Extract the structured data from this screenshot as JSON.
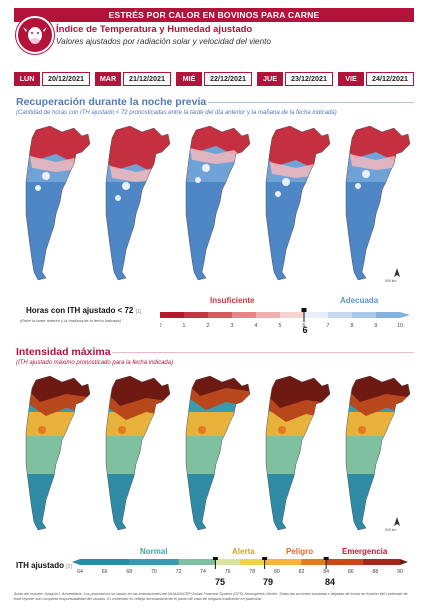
{
  "header": {
    "banner": "ESTRÉS POR CALOR EN BOVINOS PARA CARNE",
    "title": "Índice de Temperatura y Humedad ajustado",
    "subtitle": "Valores ajustados por radiación solar y velocidad del viento",
    "badge_icon": "cow-icon"
  },
  "days": [
    {
      "name": "LUN",
      "date": "20/12/2021"
    },
    {
      "name": "MAR",
      "date": "21/12/2021"
    },
    {
      "name": "MIÉ",
      "date": "22/12/2021"
    },
    {
      "name": "JUE",
      "date": "23/12/2021"
    },
    {
      "name": "VIE",
      "date": "24/12/2021"
    }
  ],
  "recovery": {
    "title": "Recuperación durante la noche previa",
    "subtitle": "(Cantidad de horas con ITH ajustado < 72 pronosticadas entre la tarde del día anterior y la mañana de la fecha indicada)",
    "legend_label": "Horas con ITH ajustado < 72",
    "legend_ref": "[1]",
    "legend_note": "(Entre la tarde anterior y la mañana de la fecha indicada)",
    "cat_low": "Insuficiente",
    "cat_high": "Adecuada",
    "threshold": "6",
    "ticks": [
      "0",
      "1",
      "2",
      "3",
      "4",
      "5",
      "6",
      "7",
      "8",
      "9",
      "10"
    ],
    "scale_text": "500 km",
    "north_label": "N"
  },
  "intensity": {
    "title": "Intensidad máxima",
    "subtitle": "(ITH ajustado máximo pronosticado para la fecha indicada)",
    "legend_label": "ITH ajustado",
    "legend_ref": "[2]",
    "cats": [
      "Normal",
      "Alerta",
      "Peligro",
      "Emergencia"
    ],
    "thresholds": [
      "75",
      "79",
      "84"
    ],
    "ticks": [
      "64",
      "66",
      "68",
      "70",
      "72",
      "74",
      "76",
      "78",
      "80",
      "82",
      "84",
      "86",
      "88",
      "90"
    ],
    "scale_text": "500 km",
    "north_label": "N"
  },
  "footer": {
    "text": "Autor del reporte: Joaquín I. Armendáriz. Los pronósticos se basan en las estimaciones del NOAA/NCEP Global Forecast System (GFS) Atmospheric Model. Todas las acciones tomadas o dejadas de tomar en función del contenido de este reporte son completa responsabilidad del usuario. El contenido no refleja necesariamente el punto de vista de ninguna institución en particular."
  },
  "colors": {
    "brand": "#b3123a",
    "blue_accent": "#5278b8"
  }
}
